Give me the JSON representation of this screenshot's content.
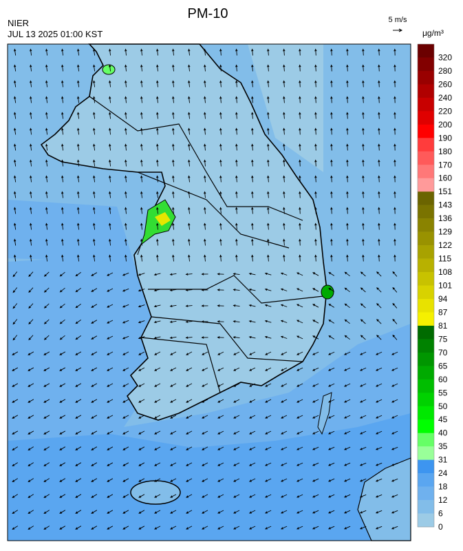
{
  "header": {
    "title": "PM-10",
    "agency": "NIER",
    "timestamp": "JUL 13 2025 01:00 KST",
    "wind_scale": "5 m/s",
    "unit": "μg/m³"
  },
  "legend": {
    "levels": [
      320,
      280,
      260,
      240,
      220,
      200,
      190,
      180,
      170,
      160,
      151,
      143,
      136,
      129,
      122,
      115,
      108,
      101,
      94,
      87,
      81,
      75,
      70,
      65,
      60,
      55,
      50,
      45,
      40,
      35,
      31,
      24,
      18,
      12,
      6,
      0
    ],
    "colors": [
      "#6b0000",
      "#820000",
      "#990000",
      "#b00000",
      "#c80000",
      "#e00000",
      "#ff0000",
      "#ff3c3c",
      "#ff5a5a",
      "#ff7878",
      "#ff9a9a",
      "#6b6400",
      "#7a7300",
      "#8a8300",
      "#999200",
      "#a8a200",
      "#b8b100",
      "#c8c200",
      "#d8d200",
      "#e8e200",
      "#f5f000",
      "#006b00",
      "#008200",
      "#009600",
      "#00aa00",
      "#00be00",
      "#00d200",
      "#00e800",
      "#00ff00",
      "#66ff66",
      "#99ff99",
      "#3d95f0",
      "#5aa6f0",
      "#6fb1ee",
      "#82bde9",
      "#9ccbe6"
    ]
  }
}
